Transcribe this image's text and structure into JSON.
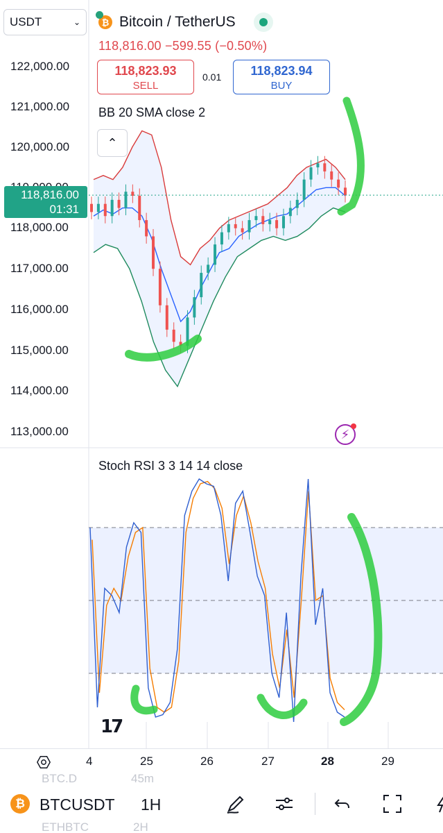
{
  "header": {
    "currency": "USDT",
    "symbol_title": "Bitcoin / TetherUS",
    "price_line": "118,816.00  −599.55 (−0.50%)",
    "sell": {
      "value": "118,823.93",
      "label": "SELL"
    },
    "buy": {
      "value": "118,823.94",
      "label": "BUY"
    },
    "lot": "0.01"
  },
  "indicators": {
    "bb_label": "BB 20 SMA close 2",
    "stoch_label": "Stoch RSI 3 3 14 14 close"
  },
  "price_axis": [
    "122,000.00",
    "121,000.00",
    "120,000.00",
    "119,000.00",
    "118,000.00",
    "117,000.00",
    "116,000.00",
    "115,000.00",
    "114,000.00",
    "113,000.00"
  ],
  "price_tag": {
    "price": "118,816.00",
    "countdown": "01:31"
  },
  "date_axis": [
    {
      "label": "4",
      "bold": false
    },
    {
      "label": "25",
      "bold": false
    },
    {
      "label": "26",
      "bold": false
    },
    {
      "label": "27",
      "bold": false
    },
    {
      "label": "28",
      "bold": true
    },
    {
      "label": "29",
      "bold": false
    }
  ],
  "ghost_list": [
    "BTC.D",
    "45m",
    "ETHBTC",
    "2H"
  ],
  "bottom_bar": {
    "symbol": "BTCUSDT",
    "interval": "1H",
    "icons": [
      "draw-pen-icon",
      "indicator-settings-icon",
      "undo-icon",
      "fullscreen-icon"
    ]
  },
  "colors": {
    "up": "#26a69a",
    "down": "#ef5350",
    "bb_upper": "#d93b3b",
    "bb_lower": "#1e8a5e",
    "bb_basis": "#2962ff",
    "stoch_k": "#2f5fd0",
    "stoch_d": "#f57c00",
    "annotation": "#2ecc40",
    "accent": "#21a387"
  },
  "chart_data": [
    {
      "type": "candlestick",
      "title": "BB 20 SMA close 2",
      "x_ticks": [
        "4",
        "25",
        "26",
        "27",
        "28",
        "29"
      ],
      "ylim": [
        113000,
        122000
      ],
      "last_price": 118816.0,
      "closes": [
        118400,
        118600,
        118300,
        118700,
        118500,
        118900,
        118800,
        118200,
        117800,
        117000,
        116100,
        115500,
        115200,
        115100,
        115800,
        116300,
        116900,
        117100,
        117600,
        117900,
        118100,
        118000,
        117900,
        118200,
        118300,
        118100,
        118200,
        118000,
        118300,
        118500,
        118700,
        119200,
        119500,
        119600,
        119400,
        119200,
        119000,
        118816
      ],
      "bb_upper": [
        119200,
        119300,
        119200,
        119500,
        120000,
        120400,
        120300,
        119500,
        118200,
        117300,
        117100,
        117500,
        117700,
        118000,
        118200,
        118300,
        118400,
        118500,
        118600,
        118800,
        119000,
        119300,
        119500,
        119600,
        119700,
        119500,
        119200
      ],
      "bb_lower": [
        117400,
        117600,
        117500,
        117000,
        116200,
        115200,
        114500,
        114100,
        114800,
        115500,
        116200,
        116800,
        117300,
        117500,
        117700,
        117800,
        117700,
        117800,
        118000,
        118300,
        118500,
        118400
      ],
      "ylabel": ""
    },
    {
      "type": "line",
      "title": "Stoch RSI 3 3 14 14 close",
      "series": [
        {
          "name": "",
          "values": [
            80,
            6,
            55,
            52,
            45,
            72,
            82,
            78,
            14,
            2,
            3,
            8,
            30,
            85,
            95,
            100,
            98,
            97,
            85,
            58,
            90,
            95,
            78,
            60,
            52,
            20,
            10,
            45,
            0,
            60,
            100,
            40,
            55,
            12,
            4,
            2
          ]
        },
        {
          "name": "",
          "values": [
            75,
            12,
            48,
            55,
            50,
            68,
            78,
            80,
            22,
            6,
            4,
            6,
            25,
            78,
            92,
            98,
            99,
            96,
            88,
            65,
            85,
            93,
            82,
            66,
            55,
            28,
            14,
            38,
            10,
            50,
            95,
            50,
            52,
            18,
            8,
            5
          ]
        }
      ],
      "ylim": [
        0,
        100
      ],
      "bands": [
        20,
        50,
        80
      ]
    }
  ]
}
